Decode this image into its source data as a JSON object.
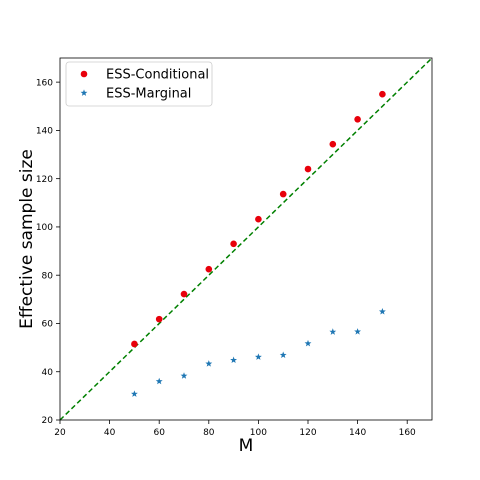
{
  "chart_data": {
    "type": "scatter",
    "xlabel": "M",
    "ylabel": "Effective sample size",
    "xlim": [
      20,
      170
    ],
    "ylim": [
      20,
      170
    ],
    "xticks": [
      20,
      40,
      60,
      80,
      100,
      120,
      140,
      160
    ],
    "yticks": [
      20,
      40,
      60,
      80,
      100,
      120,
      140,
      160
    ],
    "grid": false,
    "legend_position": "top-left",
    "reference_line": {
      "style": "dashed",
      "color": "#008000",
      "slope": 1,
      "intercept": 0
    },
    "series": [
      {
        "name": "ESS-Conditional",
        "marker": "circle",
        "color": "#e8000b",
        "x": [
          50,
          60,
          70,
          80,
          90,
          100,
          110,
          120,
          130,
          140,
          150
        ],
        "y": [
          51.5,
          61.8,
          72.2,
          82.5,
          93.0,
          103.2,
          113.6,
          124.0,
          134.3,
          144.6,
          155.0
        ]
      },
      {
        "name": "ESS-Marginal",
        "marker": "star",
        "color": "#1f77b4",
        "x": [
          50,
          60,
          70,
          80,
          90,
          100,
          110,
          120,
          130,
          140,
          150
        ],
        "y": [
          30.8,
          36.0,
          38.3,
          43.3,
          44.8,
          46.1,
          46.9,
          51.7,
          56.5,
          56.6,
          64.9
        ]
      }
    ]
  }
}
